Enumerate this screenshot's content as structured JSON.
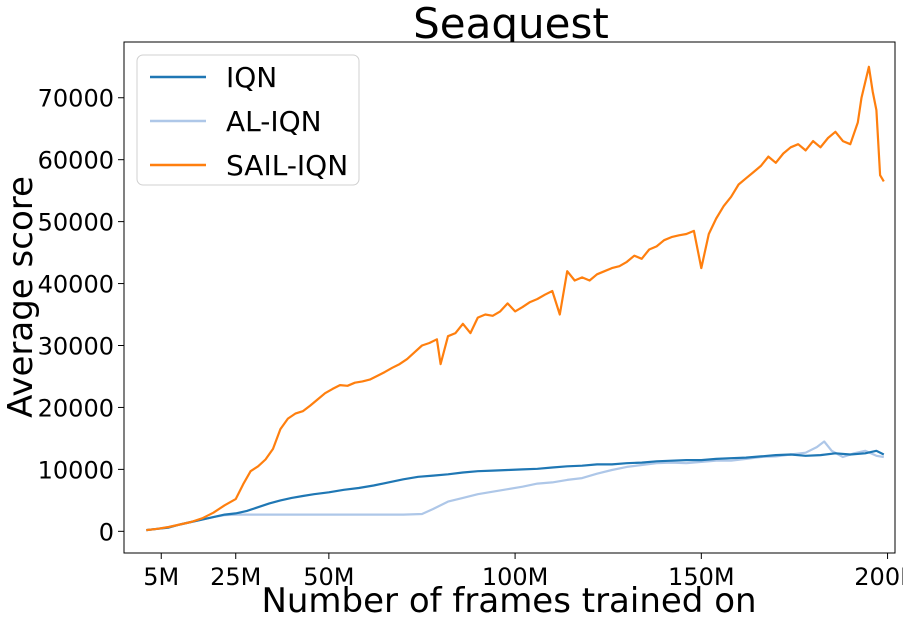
{
  "chart_data": {
    "type": "line",
    "title": "Seaquest",
    "xlabel": "Number of frames trained on",
    "ylabel": "Average score",
    "xlim": [
      -5,
      202
    ],
    "ylim": [
      -3500,
      79000
    ],
    "x_ticks": [
      5,
      25,
      50,
      100,
      150,
      200
    ],
    "x_tick_labels": [
      "5M",
      "25M",
      "50M",
      "100M",
      "150M",
      "200M"
    ],
    "y_ticks": [
      0,
      10000,
      20000,
      30000,
      40000,
      50000,
      60000,
      70000
    ],
    "y_tick_labels": [
      "0",
      "10000",
      "20000",
      "30000",
      "40000",
      "50000",
      "60000",
      "70000"
    ],
    "grid": false,
    "legend_position": "top-left",
    "series": [
      {
        "name": "IQN",
        "color": "#1f77b4",
        "points": [
          [
            1,
            200
          ],
          [
            4,
            400
          ],
          [
            7,
            600
          ],
          [
            10,
            1100
          ],
          [
            13,
            1500
          ],
          [
            16,
            1900
          ],
          [
            19,
            2300
          ],
          [
            22,
            2700
          ],
          [
            25,
            2900
          ],
          [
            28,
            3300
          ],
          [
            31,
            3900
          ],
          [
            34,
            4500
          ],
          [
            37,
            5000
          ],
          [
            40,
            5400
          ],
          [
            43,
            5700
          ],
          [
            46,
            6000
          ],
          [
            50,
            6300
          ],
          [
            54,
            6700
          ],
          [
            58,
            7000
          ],
          [
            62,
            7400
          ],
          [
            66,
            7900
          ],
          [
            70,
            8400
          ],
          [
            74,
            8800
          ],
          [
            78,
            9000
          ],
          [
            82,
            9200
          ],
          [
            86,
            9500
          ],
          [
            90,
            9700
          ],
          [
            94,
            9800
          ],
          [
            98,
            9900
          ],
          [
            102,
            10000
          ],
          [
            106,
            10100
          ],
          [
            110,
            10300
          ],
          [
            114,
            10500
          ],
          [
            118,
            10600
          ],
          [
            122,
            10800
          ],
          [
            126,
            10800
          ],
          [
            130,
            11000
          ],
          [
            134,
            11100
          ],
          [
            138,
            11300
          ],
          [
            142,
            11400
          ],
          [
            146,
            11500
          ],
          [
            150,
            11500
          ],
          [
            154,
            11700
          ],
          [
            158,
            11800
          ],
          [
            162,
            11900
          ],
          [
            166,
            12100
          ],
          [
            170,
            12300
          ],
          [
            174,
            12400
          ],
          [
            178,
            12200
          ],
          [
            182,
            12300
          ],
          [
            186,
            12600
          ],
          [
            190,
            12400
          ],
          [
            194,
            12600
          ],
          [
            197,
            13000
          ],
          [
            199,
            12400
          ]
        ]
      },
      {
        "name": "AL-IQN",
        "color": "#aec7e8",
        "points": [
          [
            1,
            200
          ],
          [
            4,
            400
          ],
          [
            7,
            700
          ],
          [
            10,
            1100
          ],
          [
            13,
            1500
          ],
          [
            16,
            1900
          ],
          [
            19,
            2300
          ],
          [
            22,
            2600
          ],
          [
            25,
            2700
          ],
          [
            30,
            2700
          ],
          [
            40,
            2700
          ],
          [
            50,
            2700
          ],
          [
            60,
            2700
          ],
          [
            70,
            2700
          ],
          [
            75,
            2800
          ],
          [
            78,
            3600
          ],
          [
            82,
            4800
          ],
          [
            86,
            5400
          ],
          [
            90,
            6000
          ],
          [
            94,
            6400
          ],
          [
            98,
            6800
          ],
          [
            102,
            7200
          ],
          [
            106,
            7700
          ],
          [
            110,
            7900
          ],
          [
            114,
            8300
          ],
          [
            118,
            8600
          ],
          [
            122,
            9300
          ],
          [
            126,
            9900
          ],
          [
            130,
            10400
          ],
          [
            134,
            10700
          ],
          [
            138,
            11000
          ],
          [
            142,
            11100
          ],
          [
            146,
            11000
          ],
          [
            150,
            11200
          ],
          [
            154,
            11400
          ],
          [
            158,
            11400
          ],
          [
            162,
            11700
          ],
          [
            166,
            12000
          ],
          [
            170,
            12100
          ],
          [
            174,
            12400
          ],
          [
            178,
            12700
          ],
          [
            181,
            13600
          ],
          [
            183,
            14500
          ],
          [
            185,
            13000
          ],
          [
            188,
            12000
          ],
          [
            191,
            12600
          ],
          [
            194,
            13000
          ],
          [
            197,
            12200
          ],
          [
            199,
            12000
          ]
        ]
      },
      {
        "name": "SAIL-IQN",
        "color": "#ff7f0e",
        "points": [
          [
            1,
            200
          ],
          [
            4,
            400
          ],
          [
            7,
            700
          ],
          [
            10,
            1100
          ],
          [
            13,
            1500
          ],
          [
            16,
            2100
          ],
          [
            19,
            3000
          ],
          [
            22,
            4200
          ],
          [
            25,
            5200
          ],
          [
            27,
            7600
          ],
          [
            29,
            9700
          ],
          [
            31,
            10500
          ],
          [
            33,
            11600
          ],
          [
            35,
            13300
          ],
          [
            37,
            16500
          ],
          [
            39,
            18200
          ],
          [
            41,
            19000
          ],
          [
            43,
            19400
          ],
          [
            45,
            20300
          ],
          [
            47,
            21300
          ],
          [
            49,
            22300
          ],
          [
            51,
            23000
          ],
          [
            53,
            23600
          ],
          [
            55,
            23500
          ],
          [
            57,
            24000
          ],
          [
            59,
            24200
          ],
          [
            61,
            24500
          ],
          [
            63,
            25100
          ],
          [
            65,
            25700
          ],
          [
            67,
            26400
          ],
          [
            69,
            27000
          ],
          [
            71,
            27800
          ],
          [
            73,
            28900
          ],
          [
            75,
            30000
          ],
          [
            77,
            30400
          ],
          [
            79,
            31000
          ],
          [
            80,
            27000
          ],
          [
            82,
            31500
          ],
          [
            84,
            32000
          ],
          [
            86,
            33500
          ],
          [
            88,
            32000
          ],
          [
            90,
            34500
          ],
          [
            92,
            35000
          ],
          [
            94,
            34800
          ],
          [
            96,
            35500
          ],
          [
            98,
            36800
          ],
          [
            100,
            35500
          ],
          [
            102,
            36200
          ],
          [
            104,
            37000
          ],
          [
            106,
            37500
          ],
          [
            108,
            38200
          ],
          [
            110,
            38800
          ],
          [
            112,
            35000
          ],
          [
            114,
            42000
          ],
          [
            116,
            40500
          ],
          [
            118,
            41000
          ],
          [
            120,
            40500
          ],
          [
            122,
            41500
          ],
          [
            124,
            42000
          ],
          [
            126,
            42500
          ],
          [
            128,
            42800
          ],
          [
            130,
            43500
          ],
          [
            132,
            44500
          ],
          [
            134,
            44000
          ],
          [
            136,
            45500
          ],
          [
            138,
            46000
          ],
          [
            140,
            47000
          ],
          [
            142,
            47500
          ],
          [
            144,
            47800
          ],
          [
            146,
            48000
          ],
          [
            148,
            48500
          ],
          [
            150,
            42500
          ],
          [
            152,
            48000
          ],
          [
            154,
            50500
          ],
          [
            156,
            52500
          ],
          [
            158,
            54000
          ],
          [
            160,
            56000
          ],
          [
            162,
            57000
          ],
          [
            164,
            58000
          ],
          [
            166,
            59000
          ],
          [
            168,
            60500
          ],
          [
            170,
            59500
          ],
          [
            172,
            61000
          ],
          [
            174,
            62000
          ],
          [
            176,
            62500
          ],
          [
            178,
            61500
          ],
          [
            180,
            63000
          ],
          [
            182,
            62000
          ],
          [
            184,
            63500
          ],
          [
            186,
            64500
          ],
          [
            188,
            63000
          ],
          [
            190,
            62500
          ],
          [
            192,
            66000
          ],
          [
            193,
            70000
          ],
          [
            195,
            75000
          ],
          [
            196,
            71000
          ],
          [
            197,
            68000
          ],
          [
            198,
            57500
          ],
          [
            199,
            56500
          ]
        ]
      }
    ]
  }
}
